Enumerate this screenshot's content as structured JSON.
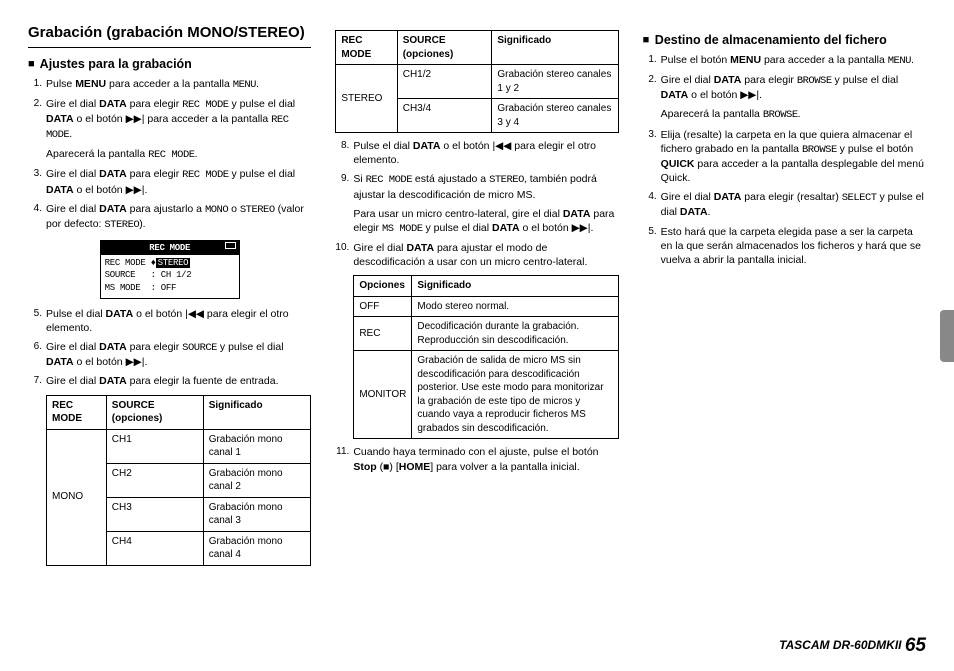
{
  "col1": {
    "h1": "Grabación (grabación MONO/STEREO)",
    "h2": "Ajustes para la grabación",
    "steps": [
      {
        "n": "1.",
        "html": "Pulse <b>MENU</b> para acceder a la pantalla <span class='mono'>MENU</span>."
      },
      {
        "n": "2.",
        "html": "Gire el dial <b>DATA</b> para elegir <span class='mono'>REC MODE</span> y pulse el dial <b>DATA</b> o el botón ▶▶| para acceder a la pantalla <span class='mono'>REC MODE</span>."
      },
      {
        "n": "",
        "html": "Aparecerá la pantalla <span class='mono'>REC MODE</span>."
      },
      {
        "n": "3.",
        "html": "Gire el dial <b>DATA</b> para elegir <span class='mono'>REC MODE</span> y pulse el dial <b>DATA</b> o el botón ▶▶|."
      },
      {
        "n": "4.",
        "html": "Gire el dial <b>DATA</b> para ajustarlo a <span class='mono'>MONO</span> o <span class='mono'>STEREO</span> (valor por defecto: <span class='mono'>STEREO</span>)."
      }
    ],
    "lcd": {
      "title": "REC  MODE",
      "rows": [
        {
          "l": "REC MODE",
          "r": "STEREO",
          "sel": true,
          "arrow": "♦"
        },
        {
          "l": "SOURCE",
          "r": "CH 1/2",
          "sel": false,
          "arrow": ":"
        },
        {
          "l": "MS MODE",
          "r": "OFF",
          "sel": false,
          "arrow": ":"
        }
      ]
    },
    "steps2": [
      {
        "n": "5.",
        "html": "Pulse el dial <b>DATA</b> o el botón |◀◀ para elegir el otro elemento."
      },
      {
        "n": "6.",
        "html": "Gire el dial <b>DATA</b> para elegir <span class='mono'>SOURCE</span> y pulse el dial <b>DATA</b> o el botón ▶▶|."
      },
      {
        "n": "7.",
        "html": "Gire el dial <b>DATA</b> para elegir la fuente de entrada."
      }
    ],
    "table1": {
      "head": [
        "REC MODE",
        "SOURCE (opciones)",
        "Significado"
      ],
      "rows": [
        {
          "mode": "MONO",
          "span": 4,
          "cells": [
            [
              "CH1",
              "Grabación mono canal 1"
            ],
            [
              "CH2",
              "Grabación mono canal 2"
            ],
            [
              "CH3",
              "Grabación mono canal 3"
            ],
            [
              "CH4",
              "Grabación mono canal 4"
            ]
          ]
        }
      ]
    }
  },
  "col2": {
    "table2": {
      "head": [
        "REC MODE",
        "SOURCE (opciones)",
        "Significado"
      ],
      "rows": [
        {
          "mode": "STEREO",
          "span": 2,
          "cells": [
            [
              "CH1/2",
              "Grabación stereo canales 1 y 2"
            ],
            [
              "CH3/4",
              "Grabación stereo canales 3 y 4"
            ]
          ]
        }
      ]
    },
    "steps": [
      {
        "n": "8.",
        "html": "Pulse el dial <b>DATA</b> o el botón |◀◀ para elegir el otro elemento."
      },
      {
        "n": "9.",
        "html": "Si <span class='mono'>REC MODE</span> está ajustado a <span class='mono'>STEREO</span>, también podrá ajustar la descodificación de micro MS."
      },
      {
        "n": "",
        "html": "Para usar un micro centro-lateral, gire el dial <b>DATA</b> para elegir <span class='mono'>MS MODE</span> y pulse el dial <b>DATA</b> o el botón ▶▶|."
      },
      {
        "n": "10.",
        "html": "Gire el dial <b>DATA</b> para ajustar el modo de descodificación a usar con un micro centro-lateral."
      }
    ],
    "table3": {
      "head": [
        "Opciones",
        "Significado"
      ],
      "rows": [
        [
          "OFF",
          "Modo stereo normal."
        ],
        [
          "REC",
          "Decodificación durante la grabación. Reproducción sin descodificación."
        ],
        [
          "MONITOR",
          "Grabación de salida de micro MS sin descodificación para descodificación posterior. Use este modo para monitorizar la grabación de este tipo de micros y cuando vaya a reproducir ficheros MS grabados sin descodificación."
        ]
      ]
    },
    "steps2": [
      {
        "n": "11.",
        "html": "Cuando haya terminado con el ajuste, pulse el botón <b>Stop</b> (■) [<b>HOME</b>] para volver a la pantalla inicial."
      }
    ]
  },
  "col3": {
    "h2": "Destino de almacenamiento del fichero",
    "steps": [
      {
        "n": "1.",
        "html": "Pulse el botón <b>MENU</b> para acceder a la pantalla <span class='mono'>MENU</span>."
      },
      {
        "n": "2.",
        "html": "Gire el dial <b>DATA</b> para elegir <span class='mono'>BROWSE</span> y pulse el dial <b>DATA</b> o el botón ▶▶|."
      },
      {
        "n": "",
        "html": "Aparecerá la pantalla <span class='mono'>BROWSE</span>."
      },
      {
        "n": "3.",
        "html": "Elija (resalte) la carpeta en la que quiera almacenar el fichero grabado en la pantalla <span class='mono'>BROWSE</span> y pulse el botón <b>QUICK</b> para acceder a la pantalla desplegable del menú Quick."
      },
      {
        "n": "4.",
        "html": "Gire el dial <b>DATA</b> para elegir (resaltar) <span class='mono'>SELECT</span> y pulse el dial <b>DATA</b>."
      },
      {
        "n": "5.",
        "html": "Esto hará que la carpeta elegida pase a ser la carpeta en la que serán almacenados los ficheros y hará que se vuelva a abrir la pantalla inicial."
      }
    ]
  },
  "footer": {
    "brand": "TASCAM  DR-60DMKII",
    "page": "65"
  }
}
